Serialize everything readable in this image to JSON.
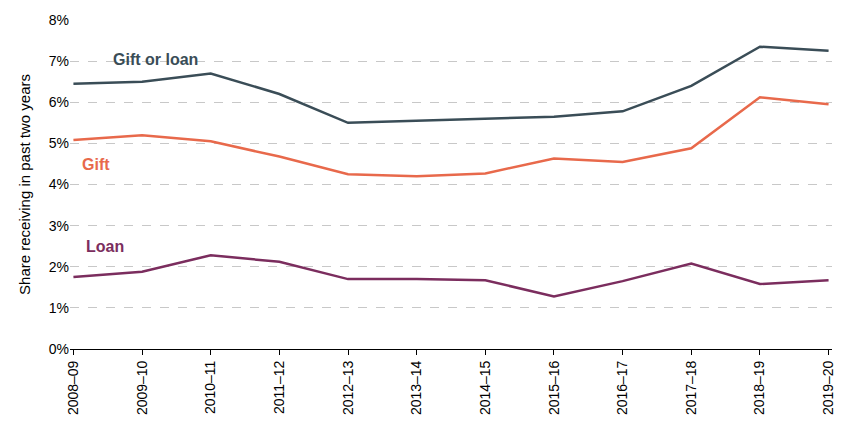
{
  "chart_data": {
    "type": "line",
    "y_label": "Share receiving in past two years",
    "categories": [
      "2008–09",
      "2009–10",
      "2010–11",
      "2011–12",
      "2012–13",
      "2013–14",
      "2014–15",
      "2015–16",
      "2016–17",
      "2017–18",
      "2018–19",
      "2019–20"
    ],
    "series": [
      {
        "name": "Gift or loan",
        "color": "#3a4d57",
        "values": [
          6.45,
          6.5,
          6.7,
          6.2,
          5.5,
          5.55,
          5.6,
          5.65,
          5.78,
          6.4,
          7.35,
          7.25
        ]
      },
      {
        "name": "Gift",
        "color": "#e8694b",
        "values": [
          5.08,
          5.2,
          5.05,
          4.68,
          4.25,
          4.2,
          4.27,
          4.63,
          4.55,
          4.88,
          6.12,
          5.95
        ]
      },
      {
        "name": "Loan",
        "color": "#7b2d5e",
        "values": [
          1.75,
          1.88,
          2.28,
          2.12,
          1.7,
          1.7,
          1.67,
          1.28,
          1.65,
          2.08,
          1.58,
          1.67
        ]
      }
    ],
    "ylim": [
      0,
      8
    ],
    "yticks": [
      {
        "value": 0,
        "label": "0%"
      },
      {
        "value": 1,
        "label": "1%"
      },
      {
        "value": 2,
        "label": "2%"
      },
      {
        "value": 3,
        "label": "3%"
      },
      {
        "value": 4,
        "label": "4%"
      },
      {
        "value": 5,
        "label": "5%"
      },
      {
        "value": 6,
        "label": "6%"
      },
      {
        "value": 7,
        "label": "7%"
      },
      {
        "value": 8,
        "label": "8%"
      }
    ],
    "grid": true,
    "legend": false
  }
}
